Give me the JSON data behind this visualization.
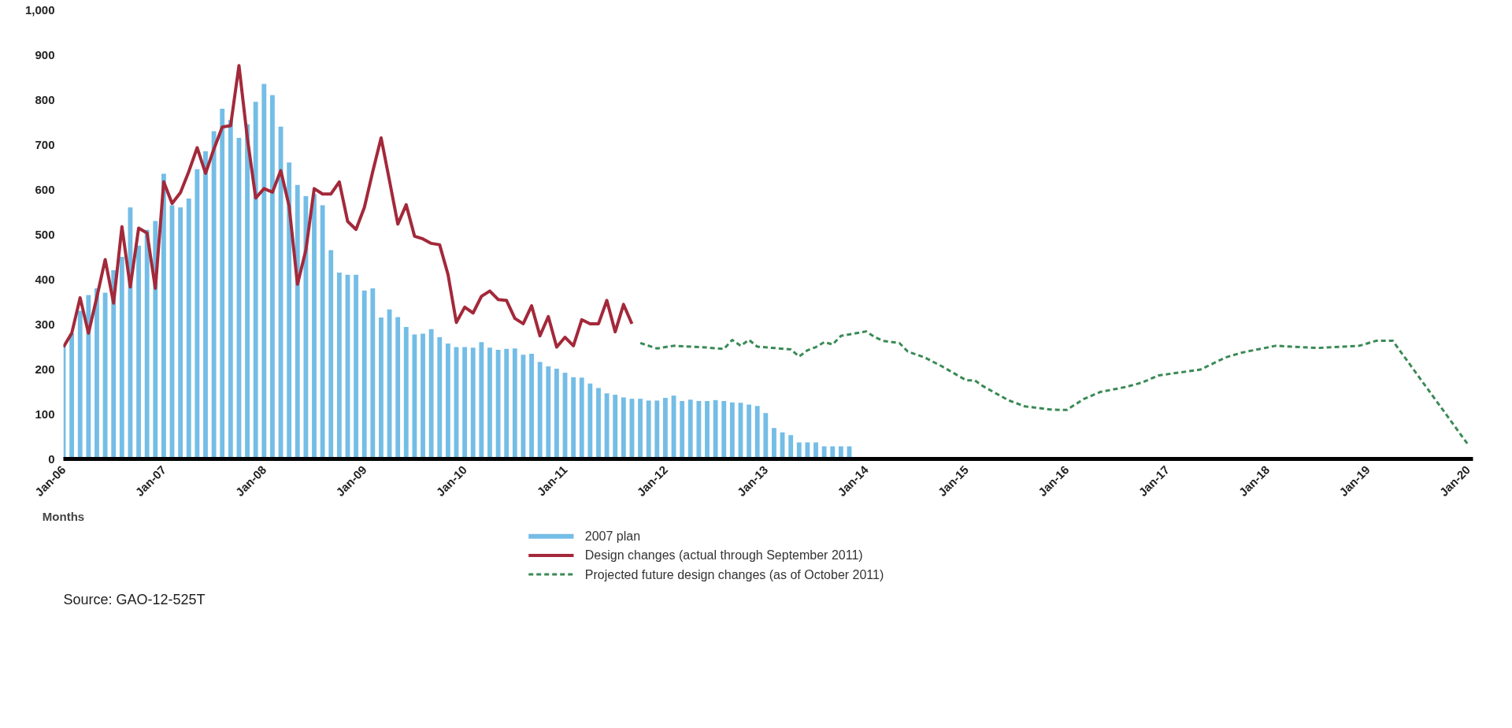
{
  "chart_data": {
    "type": "bar",
    "xlabel": "Months",
    "xlim": [
      "2006-01",
      "2020-01"
    ],
    "xticks": [
      {
        "value": "2006-01",
        "label": "Jan-06"
      },
      {
        "value": "2007-01",
        "label": "Jan-07"
      },
      {
        "value": "2008-01",
        "label": "Jan-08"
      },
      {
        "value": "2009-01",
        "label": "Jan-09"
      },
      {
        "value": "2010-01",
        "label": "Jan-10"
      },
      {
        "value": "2011-01",
        "label": "Jan-11"
      },
      {
        "value": "2012-01",
        "label": "Jan-12"
      },
      {
        "value": "2013-01",
        "label": "Jan-13"
      },
      {
        "value": "2014-01",
        "label": "Jan-14"
      },
      {
        "value": "2015-01",
        "label": "Jan-15"
      },
      {
        "value": "2016-01",
        "label": "Jan-16"
      },
      {
        "value": "2017-01",
        "label": "Jan-17"
      },
      {
        "value": "2018-01",
        "label": "Jan-18"
      },
      {
        "value": "2019-01",
        "label": "Jan-19"
      },
      {
        "value": "2020-01",
        "label": "Jan-20"
      }
    ],
    "ylim": [
      0,
      1000
    ],
    "yticks": [
      0,
      100,
      200,
      300,
      400,
      500,
      600,
      700,
      800,
      900,
      {
        "value": 1000,
        "label": "1,000"
      }
    ],
    "legend": "bottom",
    "annotations": [
      "Source: GAO-12-525T"
    ],
    "series": [
      {
        "name": "2007 plan",
        "color": "#74bde6",
        "x": [
          "2006-01",
          "2006-02",
          "2006-03",
          "2006-04",
          "2006-05",
          "2006-06",
          "2006-07",
          "2006-08",
          "2006-09",
          "2006-10",
          "2006-11",
          "2006-12",
          "2007-01",
          "2007-02",
          "2007-03",
          "2007-04",
          "2007-05",
          "2007-06",
          "2007-07",
          "2007-08",
          "2007-09",
          "2007-10",
          "2007-11",
          "2007-12",
          "2008-01",
          "2008-02",
          "2008-03",
          "2008-04",
          "2008-05",
          "2008-06",
          "2008-07",
          "2008-08",
          "2008-09",
          "2008-10",
          "2008-11",
          "2008-12",
          "2009-01",
          "2009-02",
          "2009-03",
          "2009-04",
          "2009-05",
          "2009-06",
          "2009-07",
          "2009-08",
          "2009-09",
          "2009-10",
          "2009-11",
          "2009-12",
          "2010-01",
          "2010-02",
          "2010-03",
          "2010-04",
          "2010-05",
          "2010-06",
          "2010-07",
          "2010-08",
          "2010-09",
          "2010-10",
          "2010-11",
          "2010-12",
          "2011-01",
          "2011-02",
          "2011-03",
          "2011-04",
          "2011-05",
          "2011-06",
          "2011-07",
          "2011-08",
          "2011-09",
          "2011-10",
          "2011-11",
          "2011-12",
          "2012-01",
          "2012-02",
          "2012-03",
          "2012-04",
          "2012-05",
          "2012-06",
          "2012-07",
          "2012-08",
          "2012-09",
          "2012-10",
          "2012-11",
          "2012-12",
          "2013-01",
          "2013-02",
          "2013-03",
          "2013-04",
          "2013-05",
          "2013-06",
          "2013-07",
          "2013-08",
          "2013-09",
          "2013-10",
          "2013-11"
        ],
        "values": [
          255,
          280,
          330,
          365,
          380,
          370,
          420,
          450,
          560,
          475,
          510,
          530,
          635,
          565,
          560,
          580,
          645,
          685,
          730,
          780,
          755,
          715,
          745,
          795,
          835,
          810,
          740,
          660,
          610,
          585,
          590,
          565,
          465,
          415,
          410,
          410,
          375,
          380,
          315,
          333,
          316,
          294,
          277,
          279,
          289,
          271,
          257,
          249,
          249,
          248,
          260,
          248,
          243,
          245,
          246,
          232,
          234,
          216,
          206,
          201,
          192,
          182,
          181,
          168,
          158,
          146,
          143,
          137,
          134,
          134,
          130,
          130,
          136,
          141,
          129,
          132,
          129,
          129,
          131,
          129,
          126,
          125,
          121,
          118,
          102,
          69,
          59,
          53,
          37,
          37,
          37,
          28,
          28,
          28,
          28
        ]
      },
      {
        "name": "Design changes (actual through September 2011)",
        "type": "line",
        "line_style": "solid",
        "color": "#a3293a",
        "x": [
          "2006-01",
          "2006-02",
          "2006-03",
          "2006-04",
          "2006-05",
          "2006-06",
          "2006-07",
          "2006-08",
          "2006-09",
          "2006-10",
          "2006-11",
          "2006-12",
          "2007-01",
          "2007-02",
          "2007-03",
          "2007-04",
          "2007-05",
          "2007-06",
          "2007-07",
          "2007-08",
          "2007-09",
          "2007-10",
          "2007-11",
          "2007-12",
          "2008-01",
          "2008-02",
          "2008-03",
          "2008-04",
          "2008-05",
          "2008-06",
          "2008-07",
          "2008-08",
          "2008-09",
          "2008-10",
          "2008-11",
          "2008-12",
          "2009-01",
          "2009-02",
          "2009-03",
          "2009-04",
          "2009-05",
          "2009-06",
          "2009-07",
          "2009-08",
          "2009-09",
          "2009-10",
          "2009-11",
          "2009-12",
          "2010-01",
          "2010-02",
          "2010-03",
          "2010-04",
          "2010-05",
          "2010-06",
          "2010-07",
          "2010-08",
          "2010-09",
          "2010-10",
          "2010-11",
          "2010-12",
          "2011-01",
          "2011-02",
          "2011-03",
          "2011-04",
          "2011-05",
          "2011-06",
          "2011-07",
          "2011-08",
          "2011-09"
        ],
        "values": [
          249,
          280,
          359,
          280,
          360,
          444,
          347,
          517,
          383,
          514,
          503,
          380,
          617,
          569,
          593,
          640,
          693,
          636,
          690,
          739,
          742,
          876,
          715,
          581,
          602,
          594,
          642,
          563,
          389,
          465,
          602,
          590,
          590,
          617,
          529,
          511,
          560,
          640,
          715,
          620,
          523,
          566,
          496,
          490,
          480,
          477,
          411,
          304,
          338,
          325,
          362,
          374,
          355,
          353,
          313,
          301,
          341,
          274,
          317,
          249,
          271,
          252,
          310,
          301,
          301,
          353,
          283,
          344,
          301
        ]
      },
      {
        "name": "Projected future design changes (as of October 2011)",
        "type": "line",
        "line_style": "dashed",
        "color": "#3a8a55",
        "x": [
          "2011-10",
          "2011-12",
          "2012-02",
          "2012-06",
          "2012-08",
          "2012-09",
          "2012-10",
          "2012-11",
          "2012-12",
          "2013-04",
          "2013-05",
          "2013-06",
          "2013-07",
          "2013-08",
          "2013-09",
          "2013-10",
          "2014-01",
          "2014-02",
          "2014-03",
          "2014-05",
          "2014-06",
          "2014-08",
          "2014-10",
          "2015-01",
          "2015-02",
          "2015-03",
          "2015-06",
          "2015-08",
          "2015-11",
          "2016-01",
          "2016-03",
          "2016-05",
          "2016-08",
          "2016-10",
          "2016-12",
          "2017-05",
          "2017-08",
          "2017-10",
          "2018-02",
          "2018-07",
          "2018-12",
          "2019-02",
          "2019-04",
          "2020-01"
        ],
        "values": [
          258,
          246,
          252,
          248,
          245,
          265,
          252,
          265,
          250,
          244,
          228,
          242,
          249,
          260,
          255,
          274,
          284,
          272,
          263,
          258,
          239,
          226,
          207,
          175,
          175,
          162,
          131,
          117,
          110,
          109,
          133,
          149,
          160,
          170,
          186,
          199,
          226,
          237,
          252,
          247,
          252,
          263,
          263,
          32
        ]
      }
    ]
  }
}
